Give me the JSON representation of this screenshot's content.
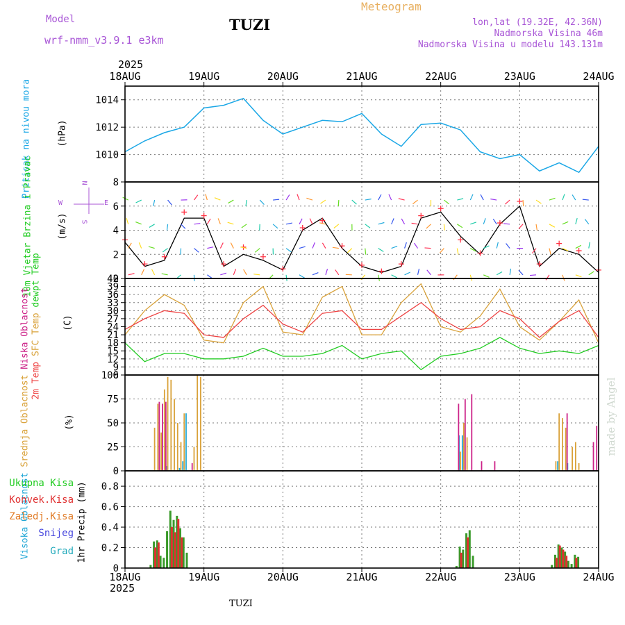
{
  "header": {
    "model_label": "Model",
    "model_name": "wrf-nmm_v3.9.1 e3km",
    "station": "TUZI",
    "title": "Meteogram",
    "lonlat": "lon,lat (19.32E, 42.36N)",
    "elevation": "Nadmorska Visina 46m",
    "model_elevation": "Nadmorska Visina u modelu 143.131m",
    "year": "2025",
    "footer_station": "TUZI",
    "credit": "made by Angel"
  },
  "colors": {
    "pressure": "#1aa7e6",
    "wind_speed": "#000000",
    "gust_marker": "#ff3344",
    "t2m": "#ee4444",
    "sfc": "#d9a23a",
    "dew": "#22cc22",
    "cloud_high": "#21a7d6",
    "cloud_mid": "#d9a23a",
    "cloud_low": "#cc2288",
    "precip_total": "#3a9a2a",
    "precip_conv": "#e03030",
    "precip_frozen": "#e07b26",
    "snow": "#4444dd",
    "grad": "#22aabb",
    "grid": "#777777"
  },
  "chart_data": [
    {
      "type": "line",
      "title": "Pritisak na nivou mora",
      "ylabel": "(hPa)",
      "x_ticks": [
        "18AUG",
        "19AUG",
        "20AUG",
        "21AUG",
        "22AUG",
        "23AUG",
        "24AUG"
      ],
      "ylim": [
        1008,
        1015
      ],
      "yticks": [
        1010,
        1012,
        1014
      ],
      "x_hours": [
        0,
        6,
        12,
        18,
        24,
        30,
        36,
        42,
        48,
        54,
        60,
        66,
        72,
        78,
        84,
        90,
        96,
        102,
        108,
        114,
        120,
        126,
        132,
        138,
        144
      ],
      "series": [
        {
          "name": "pressure",
          "values": [
            1010.2,
            1011.0,
            1011.6,
            1012.0,
            1013.4,
            1013.6,
            1014.1,
            1012.5,
            1011.5,
            1012.0,
            1012.5,
            1012.4,
            1013.0,
            1011.5,
            1010.6,
            1012.2,
            1012.3,
            1011.8,
            1010.2,
            1009.7,
            1010.0,
            1008.8,
            1009.4,
            1008.7,
            1010.6
          ]
        }
      ]
    },
    {
      "type": "line",
      "title": "10m Vjetar Brzina i Pravac",
      "ylabel": "(m/s)",
      "ylim": [
        0,
        8
      ],
      "yticks": [
        0,
        2,
        4,
        6,
        8
      ],
      "compass": [
        "N",
        "E",
        "S",
        "W"
      ],
      "x_hours": [
        0,
        6,
        12,
        18,
        24,
        30,
        36,
        42,
        48,
        54,
        60,
        66,
        72,
        78,
        84,
        90,
        96,
        102,
        108,
        114,
        120,
        126,
        132,
        138,
        144
      ],
      "series": [
        {
          "name": "speed",
          "values": [
            3.0,
            1.0,
            1.5,
            5.0,
            5.0,
            1.0,
            2.0,
            1.5,
            0.7,
            4.0,
            5.0,
            2.5,
            1.0,
            0.5,
            1.0,
            5.0,
            5.5,
            3.5,
            2.0,
            4.5,
            6.0,
            1.0,
            2.5,
            2.0,
            0.5
          ]
        },
        {
          "name": "gust",
          "values": [
            3.2,
            1.2,
            1.8,
            5.5,
            5.2,
            1.2,
            2.6,
            1.8,
            0.8,
            4.2,
            4.8,
            2.7,
            1.1,
            0.6,
            1.2,
            5.2,
            5.8,
            3.2,
            2.1,
            4.6,
            6.4,
            1.2,
            2.9,
            2.3,
            0.7
          ]
        }
      ]
    },
    {
      "type": "line",
      "title": "2m Temp / SFC Temp / dewpt Temp",
      "ylabel": "(C)",
      "ylim": [
        6,
        42
      ],
      "yticks": [
        6,
        9,
        12,
        15,
        18,
        21,
        24,
        27,
        30,
        33,
        36,
        39,
        42
      ],
      "x_hours": [
        0,
        6,
        12,
        18,
        24,
        30,
        36,
        42,
        48,
        54,
        60,
        66,
        72,
        78,
        84,
        90,
        96,
        102,
        108,
        114,
        120,
        126,
        132,
        138,
        144
      ],
      "series": [
        {
          "name": "2m Temp",
          "values": [
            23,
            27,
            30,
            29,
            21,
            20,
            27,
            32,
            25,
            22,
            29,
            30,
            23,
            23,
            28,
            33,
            27,
            23,
            24,
            30,
            27,
            20,
            26,
            30,
            20
          ]
        },
        {
          "name": "SFC Temp",
          "values": [
            21,
            30,
            36,
            32,
            19,
            18,
            33,
            39,
            22,
            21,
            35,
            39,
            21,
            21,
            33,
            40,
            24,
            22,
            28,
            38,
            24,
            19,
            26,
            34,
            18
          ]
        },
        {
          "name": "dewpt Temp",
          "values": [
            18,
            11,
            14,
            14,
            12,
            12,
            13,
            16,
            13,
            13,
            14,
            17,
            12,
            14,
            15,
            8,
            13,
            14,
            16,
            20,
            16,
            14,
            15,
            14,
            17
          ]
        }
      ]
    },
    {
      "type": "bar",
      "title": "Visoka / Srednja / Niska Oblacnost",
      "ylabel": "(%)",
      "ylim": [
        0,
        100
      ],
      "yticks": [
        0,
        25,
        50,
        75,
        100
      ],
      "series": [
        {
          "name": "Visoka Oblacnost",
          "bars": [
            [
              13,
              5
            ],
            [
              17,
              3
            ],
            [
              18,
              10
            ],
            [
              19,
              60
            ],
            [
              102,
              37
            ],
            [
              103,
              37
            ],
            [
              132,
              10
            ],
            [
              135,
              8
            ]
          ]
        },
        {
          "name": "Srednja Oblacnost",
          "bars": [
            [
              9,
              45
            ],
            [
              10,
              70
            ],
            [
              11,
              40
            ],
            [
              12,
              85
            ],
            [
              13,
              98
            ],
            [
              14,
              95
            ],
            [
              15,
              75
            ],
            [
              16,
              50
            ],
            [
              17,
              30
            ],
            [
              18,
              60
            ],
            [
              21,
              25
            ],
            [
              22,
              100
            ],
            [
              23,
              98
            ],
            [
              102,
              20
            ],
            [
              103,
              50
            ],
            [
              104,
              35
            ],
            [
              131,
              10
            ],
            [
              132,
              60
            ],
            [
              133,
              55
            ],
            [
              134,
              45
            ],
            [
              136,
              25
            ],
            [
              137,
              30
            ],
            [
              138,
              8
            ]
          ]
        },
        {
          "name": "Niska Oblacnost",
          "bars": [
            [
              10,
              72
            ],
            [
              11,
              70
            ],
            [
              12,
              72
            ],
            [
              20,
              8
            ],
            [
              101,
              70
            ],
            [
              103,
              75
            ],
            [
              105,
              80
            ],
            [
              108,
              10
            ],
            [
              112,
              10
            ],
            [
              134,
              60
            ],
            [
              142,
              30
            ],
            [
              143,
              47
            ]
          ]
        }
      ]
    },
    {
      "type": "bar",
      "title": "1hr Precip",
      "ylabel": "1hr Precip (mm)",
      "ylim": [
        0,
        0.95
      ],
      "yticks": [
        0,
        0.2,
        0.4,
        0.6,
        0.8
      ],
      "legend": [
        "Ukupna Kisa",
        "Konvek.Kisa",
        "Zaledj.Kisa",
        "Snijeg",
        "Grad"
      ],
      "series": [
        {
          "name": "Ukupna Kisa",
          "bars": [
            [
              8,
              0.03
            ],
            [
              9,
              0.26
            ],
            [
              10,
              0.27
            ],
            [
              11,
              0.12
            ],
            [
              12,
              0.1
            ],
            [
              13,
              0.36
            ],
            [
              14,
              0.56
            ],
            [
              15,
              0.47
            ],
            [
              16,
              0.51
            ],
            [
              17,
              0.39
            ],
            [
              18,
              0.3
            ],
            [
              19,
              0.15
            ],
            [
              101,
              0.02
            ],
            [
              102,
              0.21
            ],
            [
              103,
              0.18
            ],
            [
              104,
              0.34
            ],
            [
              105,
              0.37
            ],
            [
              106,
              0.12
            ],
            [
              130,
              0.03
            ],
            [
              131,
              0.13
            ],
            [
              132,
              0.23
            ],
            [
              133,
              0.2
            ],
            [
              134,
              0.16
            ],
            [
              135,
              0.07
            ],
            [
              136,
              0.04
            ],
            [
              137,
              0.13
            ],
            [
              138,
              0.11
            ]
          ]
        },
        {
          "name": "Konvek.Kisa",
          "bars": [
            [
              9,
              0.2
            ],
            [
              10,
              0.25
            ],
            [
              14,
              0.4
            ],
            [
              15,
              0.35
            ],
            [
              16,
              0.48
            ],
            [
              17,
              0.3
            ],
            [
              102,
              0.15
            ],
            [
              104,
              0.3
            ],
            [
              131,
              0.1
            ],
            [
              132,
              0.22
            ],
            [
              133,
              0.18
            ],
            [
              134,
              0.12
            ],
            [
              137,
              0.1
            ]
          ]
        }
      ]
    }
  ]
}
